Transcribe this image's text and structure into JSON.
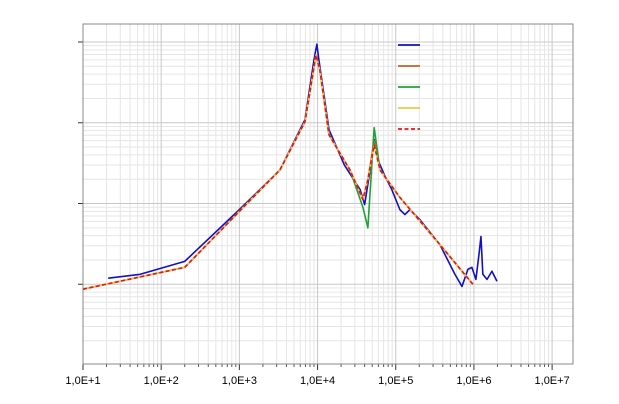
{
  "chart_data": {
    "type": "line",
    "xscale": "log",
    "yscale": "log",
    "grid": true,
    "legend": "top-right",
    "xlim": [
      10,
      18500000
    ],
    "ylim": [
      0.0103,
      167
    ],
    "xticks": [
      {
        "value": 10,
        "label": "1,0E+1"
      },
      {
        "value": 100,
        "label": "1,0E+2"
      },
      {
        "value": 1000,
        "label": "1,0E+3"
      },
      {
        "value": 10000,
        "label": "1,0E+4"
      },
      {
        "value": 100000,
        "label": "1,0E+5"
      },
      {
        "value": 1000000,
        "label": "1,0E+6"
      },
      {
        "value": 10000000,
        "label": "1,0E+7"
      }
    ],
    "yticks": [
      0.1,
      1,
      10,
      100
    ],
    "series": [
      {
        "color": "#1010c8",
        "x": [
          21,
          54,
          200,
          1000,
          3300,
          6900,
          9000,
          9800,
          10400,
          14000,
          22000,
          35000,
          40000,
          47000,
          53000,
          59000,
          71000,
          89000,
          113000,
          131000,
          152000,
          204000,
          367000,
          571000,
          703000,
          838000,
          942000,
          1060000,
          1160000,
          1230000,
          1300000,
          1470000,
          1700000,
          1970000
        ],
        "values": [
          0.119,
          0.133,
          0.192,
          0.84,
          2.6,
          10.9,
          60,
          94,
          60,
          8.2,
          3.0,
          1.49,
          0.97,
          2.6,
          6.2,
          3.5,
          2.3,
          1.49,
          0.84,
          0.73,
          0.84,
          0.63,
          0.31,
          0.133,
          0.094,
          0.153,
          0.162,
          0.115,
          0.234,
          0.39,
          0.133,
          0.115,
          0.145,
          0.109
        ]
      },
      {
        "color": "#c0622a",
        "x": [
          10,
          200,
          1000,
          3300,
          6900,
          9550,
          10700,
          14000,
          26000,
          38000,
          44000,
          53000,
          63000,
          113000,
          367000,
          970000
        ],
        "values": [
          0.087,
          0.162,
          0.8,
          2.6,
          10.3,
          69,
          45,
          7.1,
          2.6,
          1.12,
          1.98,
          6.0,
          2.6,
          1.19,
          0.31,
          0.1
        ]
      },
      {
        "color": "#1fa03a",
        "x": [
          10,
          200,
          1000,
          3300,
          6900,
          9550,
          10700,
          14000,
          26000,
          38000,
          44000,
          53000,
          63000,
          113000,
          367000,
          970000
        ],
        "values": [
          0.087,
          0.162,
          0.8,
          2.6,
          10.3,
          69,
          45,
          7.1,
          2.6,
          0.9,
          0.5,
          8.7,
          2.6,
          1.19,
          0.31,
          0.1
        ]
      },
      {
        "color": "#f5c542",
        "x": [
          10,
          200,
          1000,
          3300,
          6900,
          9550,
          10700,
          14000,
          26000,
          38000,
          44000,
          53000,
          63000,
          113000,
          367000,
          970000
        ],
        "values": [
          0.087,
          0.162,
          0.8,
          2.6,
          10.3,
          69,
          45,
          7.1,
          2.6,
          1.12,
          1.98,
          5.3,
          2.6,
          1.19,
          0.31,
          0.1
        ]
      },
      {
        "color": "#e8141c",
        "dashed": true,
        "x": [
          10,
          200,
          1000,
          3300,
          6900,
          9550,
          10700,
          14000,
          26000,
          38000,
          44000,
          53000,
          63000,
          113000,
          367000,
          970000
        ],
        "values": [
          0.087,
          0.162,
          0.8,
          2.6,
          10.3,
          69,
          45,
          7.1,
          2.6,
          1.12,
          1.98,
          5.3,
          2.6,
          1.19,
          0.31,
          0.1
        ]
      }
    ]
  }
}
